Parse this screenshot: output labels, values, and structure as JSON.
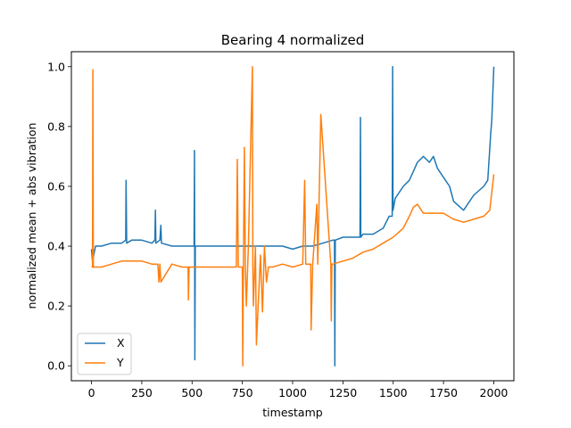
{
  "chart_data": {
    "type": "line",
    "title": "Bearing 4 normalized",
    "xlabel": "timestamp",
    "ylabel": "normalized mean + abs vibration",
    "xlim": [
      -100,
      2100
    ],
    "ylim": [
      -0.05,
      1.05
    ],
    "xticks": [
      0,
      250,
      500,
      750,
      1000,
      1250,
      1500,
      1750,
      2000
    ],
    "yticks": [
      0.0,
      0.2,
      0.4,
      0.6,
      0.8,
      1.0
    ],
    "xtick_labels": [
      "0",
      "250",
      "500",
      "750",
      "1000",
      "1250",
      "1500",
      "1750",
      "2000"
    ],
    "ytick_labels": [
      "0.0",
      "0.2",
      "0.4",
      "0.6",
      "0.8",
      "1.0"
    ],
    "grid": false,
    "legend": "lower-left",
    "series": [
      {
        "name": "X",
        "color": "#1f77b4",
        "x": [
          0,
          5,
          20,
          50,
          100,
          150,
          170,
          172,
          175,
          200,
          250,
          300,
          315,
          318,
          320,
          340,
          345,
          348,
          400,
          450,
          500,
          510,
          512,
          514,
          516,
          550,
          600,
          650,
          700,
          750,
          800,
          850,
          900,
          950,
          1000,
          1050,
          1100,
          1150,
          1200,
          1208,
          1210,
          1212,
          1250,
          1300,
          1335,
          1337,
          1339,
          1350,
          1400,
          1450,
          1480,
          1495,
          1497,
          1499,
          1510,
          1550,
          1580,
          1600,
          1620,
          1650,
          1680,
          1700,
          1720,
          1750,
          1780,
          1800,
          1850,
          1900,
          1950,
          1970,
          1985,
          1990,
          2000
        ],
        "y": [
          0.39,
          0.35,
          0.4,
          0.4,
          0.41,
          0.41,
          0.42,
          0.62,
          0.41,
          0.42,
          0.42,
          0.41,
          0.42,
          0.52,
          0.41,
          0.42,
          0.47,
          0.41,
          0.4,
          0.4,
          0.4,
          0.4,
          0.72,
          0.02,
          0.4,
          0.4,
          0.4,
          0.4,
          0.4,
          0.4,
          0.4,
          0.4,
          0.4,
          0.4,
          0.39,
          0.4,
          0.4,
          0.41,
          0.42,
          0.42,
          0.0,
          0.42,
          0.43,
          0.43,
          0.43,
          0.83,
          0.43,
          0.44,
          0.44,
          0.46,
          0.5,
          0.5,
          1.0,
          0.52,
          0.56,
          0.6,
          0.62,
          0.65,
          0.68,
          0.7,
          0.68,
          0.7,
          0.66,
          0.63,
          0.6,
          0.55,
          0.52,
          0.57,
          0.6,
          0.62,
          0.78,
          0.82,
          1.0
        ]
      },
      {
        "name": "Y",
        "color": "#ff7f0e",
        "x": [
          0,
          5,
          7,
          9,
          20,
          50,
          100,
          150,
          200,
          250,
          300,
          330,
          335,
          340,
          345,
          400,
          450,
          480,
          482,
          485,
          500,
          550,
          600,
          650,
          700,
          720,
          725,
          730,
          750,
          752,
          755,
          760,
          765,
          770,
          780,
          800,
          802,
          805,
          815,
          820,
          840,
          850,
          860,
          870,
          880,
          900,
          950,
          1000,
          1050,
          1060,
          1065,
          1090,
          1092,
          1100,
          1120,
          1125,
          1140,
          1190,
          1192,
          1195,
          1200,
          1250,
          1300,
          1350,
          1400,
          1450,
          1500,
          1550,
          1580,
          1600,
          1620,
          1650,
          1700,
          1750,
          1800,
          1850,
          1900,
          1950,
          1980,
          2000
        ],
        "y": [
          0.33,
          0.33,
          0.99,
          0.33,
          0.33,
          0.33,
          0.34,
          0.35,
          0.35,
          0.35,
          0.34,
          0.34,
          0.28,
          0.34,
          0.28,
          0.34,
          0.33,
          0.33,
          0.22,
          0.33,
          0.33,
          0.33,
          0.33,
          0.33,
          0.33,
          0.33,
          0.69,
          0.33,
          0.33,
          0.0,
          0.33,
          0.73,
          0.33,
          0.2,
          0.4,
          1.0,
          0.33,
          0.2,
          0.4,
          0.07,
          0.37,
          0.18,
          0.4,
          0.28,
          0.33,
          0.33,
          0.34,
          0.33,
          0.34,
          0.62,
          0.34,
          0.34,
          0.12,
          0.34,
          0.54,
          0.34,
          0.84,
          0.34,
          0.15,
          0.34,
          0.34,
          0.35,
          0.36,
          0.38,
          0.39,
          0.41,
          0.43,
          0.46,
          0.5,
          0.53,
          0.54,
          0.51,
          0.51,
          0.51,
          0.49,
          0.48,
          0.49,
          0.5,
          0.52,
          0.64
        ]
      }
    ]
  }
}
